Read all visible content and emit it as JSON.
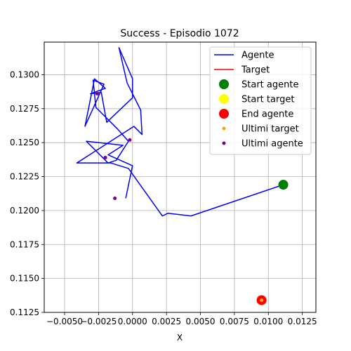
{
  "chart_data": {
    "type": "line",
    "title": "Success - Episodio 1072",
    "xlabel": "X",
    "ylabel": "",
    "xlim": [
      -0.0065,
      0.0135
    ],
    "ylim": [
      0.1125,
      0.1324
    ],
    "grid": true,
    "legend_position": "top-right",
    "x_ticks": [
      -0.005,
      -0.0025,
      0.0,
      0.0025,
      0.005,
      0.0075,
      0.01,
      0.0125
    ],
    "x_tick_labels": [
      "−0.0050",
      "−0.0025",
      "0.0000",
      "0.0025",
      "0.0050",
      "0.0075",
      "0.0100",
      "0.0125"
    ],
    "y_ticks": [
      0.1125,
      0.115,
      0.1175,
      0.12,
      0.1225,
      0.125,
      0.1275,
      0.13
    ],
    "y_tick_labels": [
      "0.1125",
      "0.1150",
      "0.1175",
      "0.1200",
      "0.1225",
      "0.1250",
      "0.1275",
      "0.1300"
    ],
    "series": [
      {
        "name": "Agente",
        "kind": "line",
        "color": "#0000ff",
        "points": [
          [
            0.0111,
            0.1219
          ],
          [
            0.0043,
            0.1196
          ],
          [
            0.0026,
            0.1198
          ],
          [
            0.0022,
            0.1196
          ],
          [
            -0.0003,
            0.1231
          ],
          [
            -0.0016,
            0.1235
          ],
          [
            -0.0041,
            0.1235
          ],
          [
            0.0001,
            0.1262
          ],
          [
            0.0007,
            0.1256
          ],
          [
            0.0006,
            0.1274
          ],
          [
            -0.0004,
            0.1294
          ],
          [
            -0.001,
            0.132
          ],
          [
            0.0,
            0.1297
          ],
          [
            0.0,
            0.1283
          ],
          [
            -0.0019,
            0.1265
          ],
          [
            -0.0023,
            0.1287
          ],
          [
            -0.0031,
            0.1286
          ],
          [
            -0.002,
            0.129
          ],
          [
            -0.0028,
            0.1297
          ],
          [
            -0.0035,
            0.1262
          ],
          [
            -0.0021,
            0.1293
          ],
          [
            -0.0029,
            0.1296
          ],
          [
            -0.0027,
            0.1276
          ],
          [
            -0.0011,
            0.126
          ],
          [
            -0.0003,
            0.1251
          ],
          [
            -0.0012,
            0.1237
          ],
          [
            -0.0018,
            0.1235
          ],
          [
            -0.0034,
            0.1251
          ],
          [
            -0.0007,
            0.1248
          ],
          [
            -0.0018,
            0.1241
          ],
          [
            0.0,
            0.1233
          ],
          [
            -0.0005,
            0.1209
          ]
        ]
      },
      {
        "name": "Target",
        "kind": "line",
        "color": "#ff0000",
        "points": [
          [
            0.0095,
            0.1134
          ]
        ]
      },
      {
        "name": "Start agente",
        "kind": "point",
        "color": "#008000",
        "size": 7,
        "points": [
          [
            0.0111,
            0.1219
          ]
        ]
      },
      {
        "name": "Start target",
        "kind": "point",
        "color": "#ffff00",
        "size": 7,
        "points": [
          [
            0.0095,
            0.1134
          ]
        ]
      },
      {
        "name": "End agente",
        "kind": "point",
        "color": "#ff0000",
        "size": 7,
        "points": [
          [
            0.0095,
            0.1134
          ]
        ]
      },
      {
        "name": "Ultimi target",
        "kind": "point",
        "color": "#ffa500",
        "size": 2.5,
        "points": [
          [
            0.0095,
            0.1134
          ]
        ]
      },
      {
        "name": "Ultimi agente",
        "kind": "point",
        "color": "#800080",
        "size": 2.5,
        "points": [
          [
            -0.0013,
            0.1209
          ],
          [
            -0.002,
            0.1239
          ],
          [
            -0.0002,
            0.1252
          ],
          [
            -0.0026,
            0.1286
          ]
        ]
      }
    ]
  }
}
